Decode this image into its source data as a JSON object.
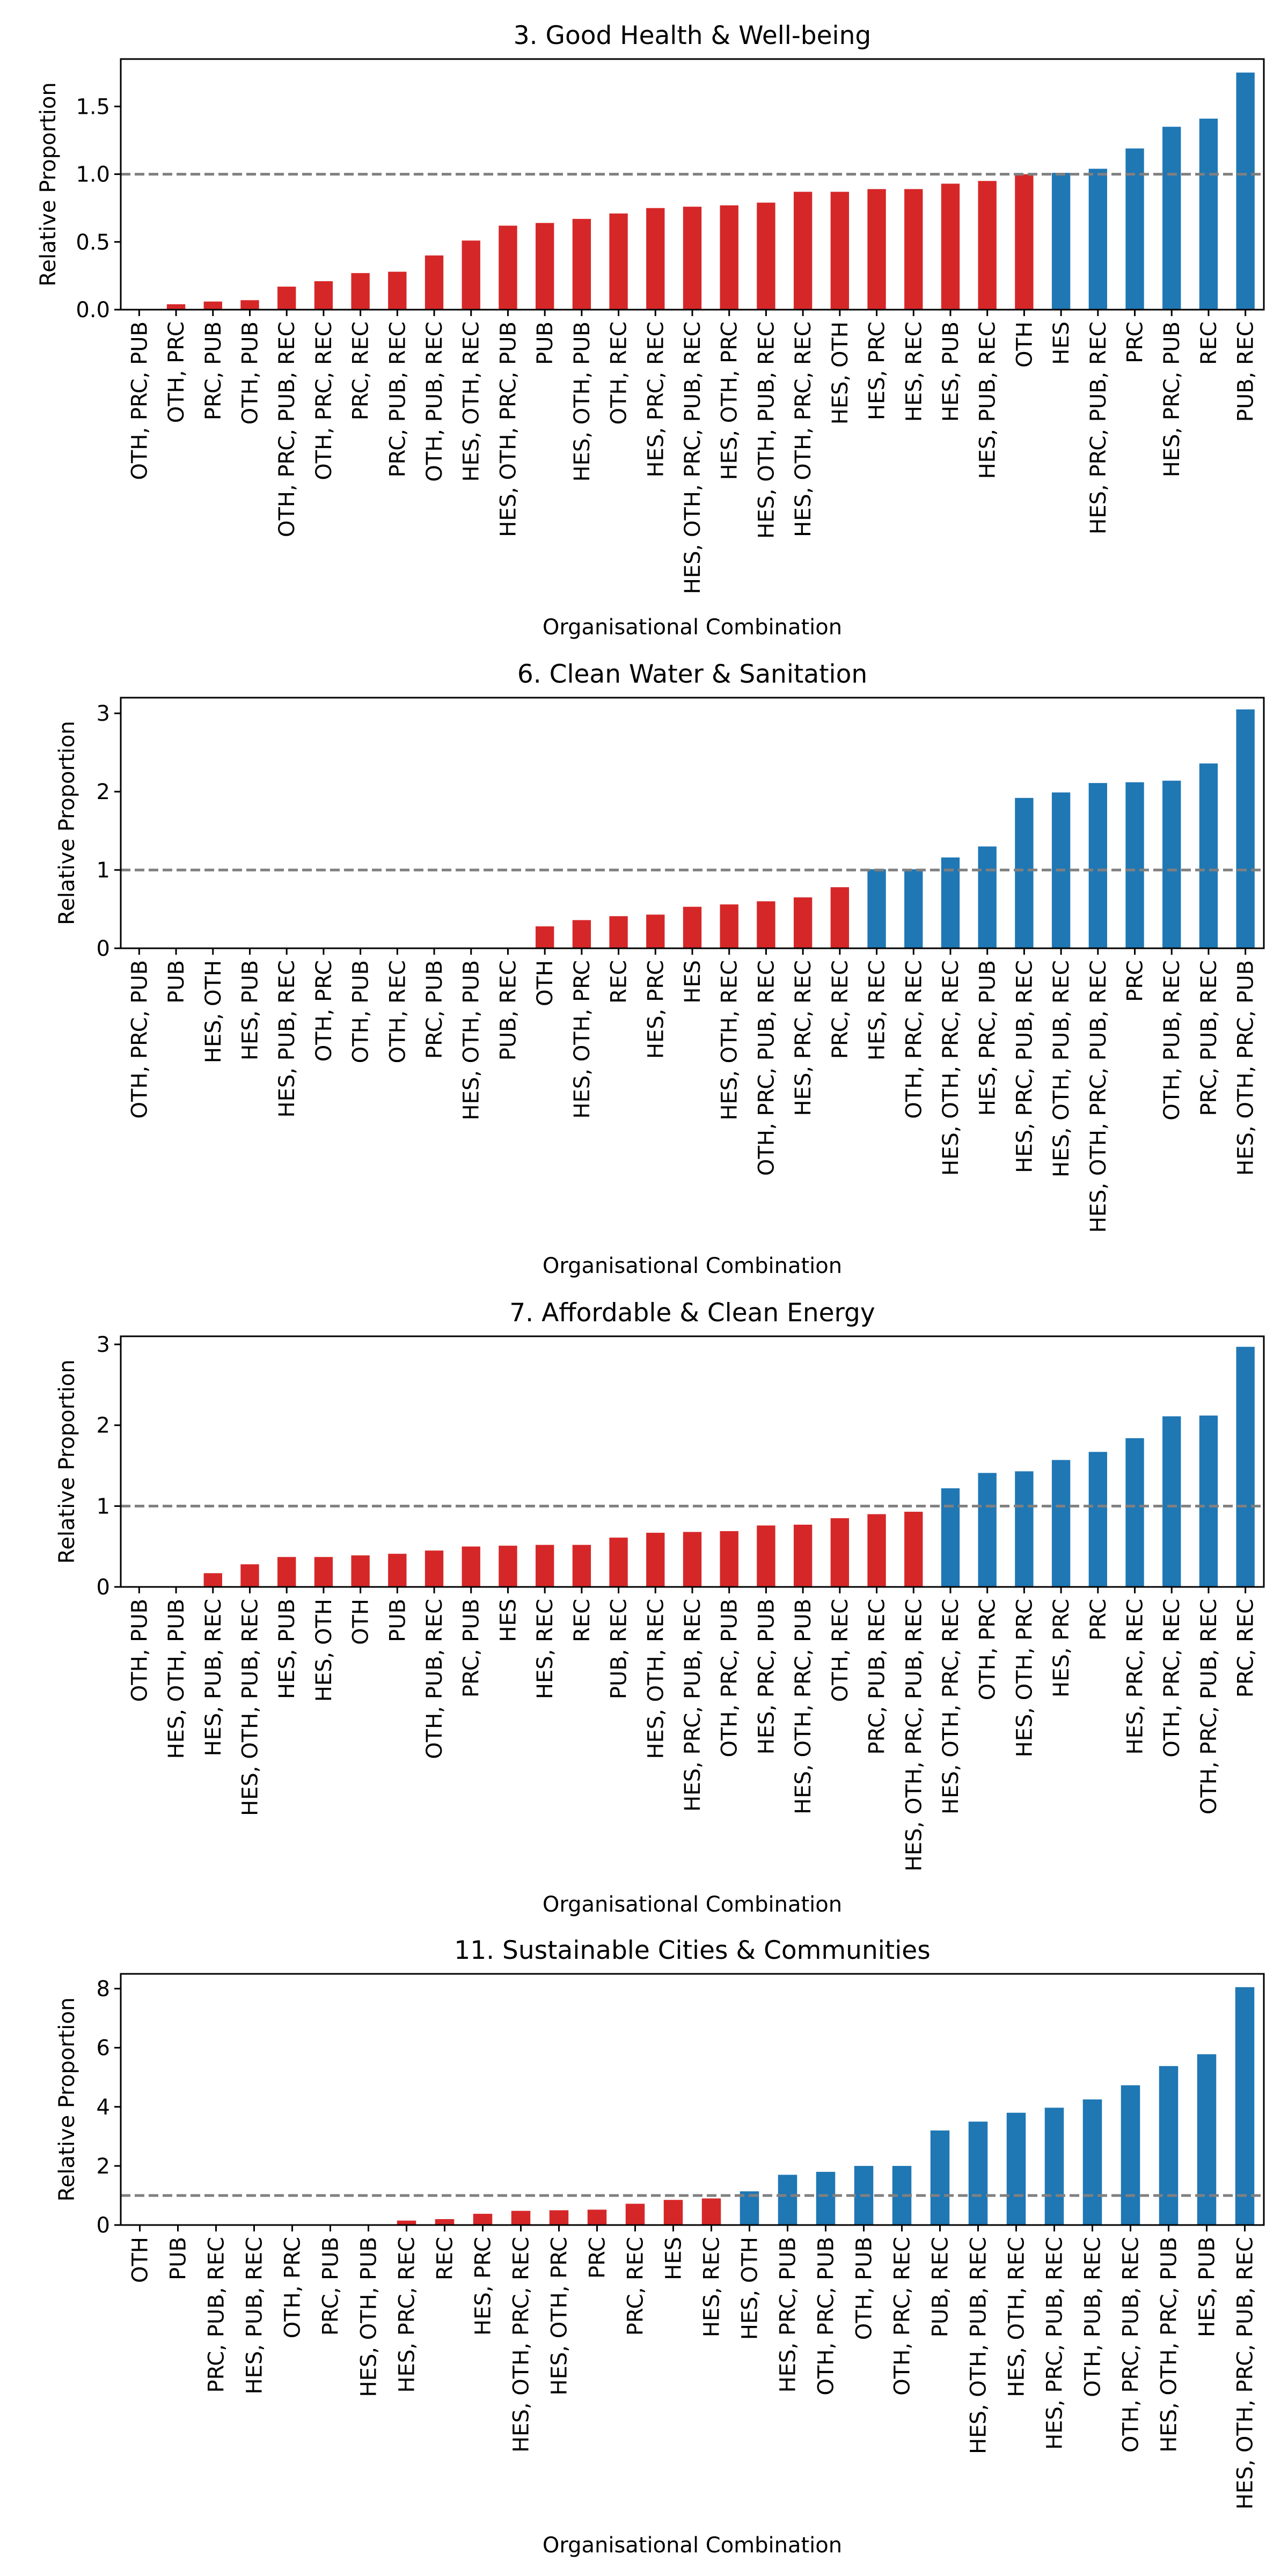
{
  "chart_data": [
    {
      "type": "bar",
      "title": "3. Good Health & Well-being",
      "xlabel": "Organisational Combination",
      "ylabel": "Relative Proportion",
      "ylim": [
        0,
        1.85
      ],
      "yticks": [
        "0.0",
        "0.5",
        "1.0",
        "1.5"
      ],
      "ytick_values": [
        0,
        0.5,
        1.0,
        1.5
      ],
      "reference_line": 1.0,
      "colors": {
        "below": "#d62728",
        "above": "#1f77b4",
        "reference": "#808080"
      },
      "categories": [
        "OTH, PRC, PUB",
        "OTH, PRC",
        "PRC, PUB",
        "OTH, PUB",
        "OTH, PRC, PUB, REC",
        "OTH, PRC, REC",
        "PRC, REC",
        "PRC, PUB, REC",
        "OTH, PUB, REC",
        "HES, OTH, REC",
        "HES, OTH, PRC, PUB",
        "PUB",
        "HES, OTH, PUB",
        "OTH, REC",
        "HES, PRC, REC",
        "HES, OTH, PRC, PUB, REC",
        "HES, OTH, PRC",
        "HES, OTH, PUB, REC",
        "HES, OTH, PRC, REC",
        "HES, OTH",
        "HES, PRC",
        "HES, REC",
        "HES, PUB",
        "HES, PUB, REC",
        "OTH",
        "HES",
        "HES, PRC, PUB, REC",
        "PRC",
        "HES, PRC, PUB",
        "REC",
        "PUB, REC"
      ],
      "values": [
        0.0,
        0.04,
        0.06,
        0.07,
        0.17,
        0.21,
        0.27,
        0.28,
        0.4,
        0.51,
        0.62,
        0.64,
        0.67,
        0.71,
        0.75,
        0.76,
        0.77,
        0.79,
        0.87,
        0.87,
        0.89,
        0.89,
        0.93,
        0.95,
        1.0,
        1.01,
        1.04,
        1.19,
        1.35,
        1.41,
        1.75
      ]
    },
    {
      "type": "bar",
      "title": "6. Clean Water & Sanitation",
      "xlabel": "Organisational Combination",
      "ylabel": "Relative Proportion",
      "ylim": [
        0,
        3.2
      ],
      "yticks": [
        "0",
        "1",
        "2",
        "3"
      ],
      "ytick_values": [
        0,
        1,
        2,
        3
      ],
      "reference_line": 1.0,
      "colors": {
        "below": "#d62728",
        "above": "#1f77b4",
        "reference": "#808080"
      },
      "categories": [
        "OTH, PRC, PUB",
        "PUB",
        "HES, OTH",
        "HES, PUB",
        "HES, PUB, REC",
        "OTH, PRC",
        "OTH, PUB",
        "OTH, REC",
        "PRC, PUB",
        "HES, OTH, PUB",
        "PUB, REC",
        "OTH",
        "HES, OTH, PRC",
        "REC",
        "HES, PRC",
        "HES",
        "HES, OTH, REC",
        "OTH, PRC, PUB, REC",
        "HES, PRC, REC",
        "PRC, REC",
        "HES, REC",
        "OTH, PRC, REC",
        "HES, OTH, PRC, REC",
        "HES, PRC, PUB",
        "HES, PRC, PUB, REC",
        "HES, OTH, PUB, REC",
        "HES, OTH, PRC, PUB, REC",
        "PRC",
        "OTH, PUB, REC",
        "PRC, PUB, REC",
        "HES, OTH, PRC, PUB"
      ],
      "values": [
        0,
        0,
        0,
        0,
        0,
        0,
        0,
        0,
        0,
        0,
        0,
        0.28,
        0.36,
        0.41,
        0.43,
        0.53,
        0.56,
        0.6,
        0.65,
        0.78,
        1.01,
        1.01,
        1.16,
        1.3,
        1.92,
        1.99,
        2.11,
        2.12,
        2.14,
        2.36,
        3.05
      ]
    },
    {
      "type": "bar",
      "title": "7. Affordable & Clean Energy",
      "xlabel": "Organisational Combination",
      "ylabel": "Relative Proportion",
      "ylim": [
        0,
        3.1
      ],
      "yticks": [
        "0",
        "1",
        "2",
        "3"
      ],
      "ytick_values": [
        0,
        1,
        2,
        3
      ],
      "reference_line": 1.0,
      "colors": {
        "below": "#d62728",
        "above": "#1f77b4",
        "reference": "#808080"
      },
      "categories": [
        "OTH, PUB",
        "HES, OTH, PUB",
        "HES, PUB, REC",
        "HES, OTH, PUB, REC",
        "HES, PUB",
        "HES, OTH",
        "OTH",
        "PUB",
        "OTH, PUB, REC",
        "PRC, PUB",
        "HES",
        "HES, REC",
        "REC",
        "PUB, REC",
        "HES, OTH, REC",
        "HES, PRC, PUB, REC",
        "OTH, PRC, PUB",
        "HES, PRC, PUB",
        "HES, OTH, PRC, PUB",
        "OTH, REC",
        "PRC, PUB, REC",
        "HES, OTH, PRC, PUB, REC",
        "HES, OTH, PRC, REC",
        "OTH, PRC",
        "HES, OTH, PRC",
        "HES, PRC",
        "PRC",
        "HES, PRC, REC",
        "OTH, PRC, REC",
        "OTH, PRC, PUB, REC",
        "PRC, REC"
      ],
      "values": [
        0,
        0,
        0.17,
        0.28,
        0.37,
        0.37,
        0.39,
        0.41,
        0.45,
        0.5,
        0.51,
        0.52,
        0.52,
        0.61,
        0.67,
        0.68,
        0.69,
        0.76,
        0.77,
        0.85,
        0.9,
        0.93,
        1.22,
        1.41,
        1.43,
        1.57,
        1.67,
        1.84,
        2.11,
        2.12,
        2.97
      ]
    },
    {
      "type": "bar",
      "title": "11.  Sustainable Cities & Communities",
      "xlabel": "Organisational Combination",
      "ylabel": "Relative Proportion",
      "ylim": [
        0,
        8.5
      ],
      "yticks": [
        "0",
        "2",
        "4",
        "6",
        "8"
      ],
      "ytick_values": [
        0,
        2,
        4,
        6,
        8
      ],
      "reference_line": 1.0,
      "colors": {
        "below": "#d62728",
        "above": "#1f77b4",
        "reference": "#808080"
      },
      "categories": [
        "OTH",
        "PUB",
        "PRC, PUB, REC",
        "HES, PUB, REC",
        "OTH, PRC",
        "PRC, PUB",
        "HES, OTH, PUB",
        "HES, PRC, REC",
        "REC",
        "HES, PRC",
        "HES, OTH, PRC, REC",
        "HES, OTH, PRC",
        "PRC",
        "PRC, REC",
        "HES",
        "HES, REC",
        "HES, OTH",
        "HES, PRC, PUB",
        "OTH, PRC, PUB",
        "OTH, PUB",
        "OTH, PRC, REC",
        "PUB, REC",
        "HES, OTH, PUB, REC",
        "HES, OTH, REC",
        "HES, PRC, PUB, REC",
        "OTH, PUB, REC",
        "OTH, PRC, PUB, REC",
        "HES, OTH, PRC, PUB",
        "HES, PUB",
        "HES, OTH, PRC, PUB, REC"
      ],
      "values": [
        0,
        0,
        0,
        0,
        0,
        0,
        0,
        0.15,
        0.2,
        0.38,
        0.48,
        0.5,
        0.52,
        0.72,
        0.85,
        0.9,
        1.14,
        1.7,
        1.8,
        2.0,
        2.0,
        3.2,
        3.5,
        3.8,
        3.97,
        4.25,
        4.73,
        5.38,
        5.78,
        8.05
      ]
    }
  ]
}
